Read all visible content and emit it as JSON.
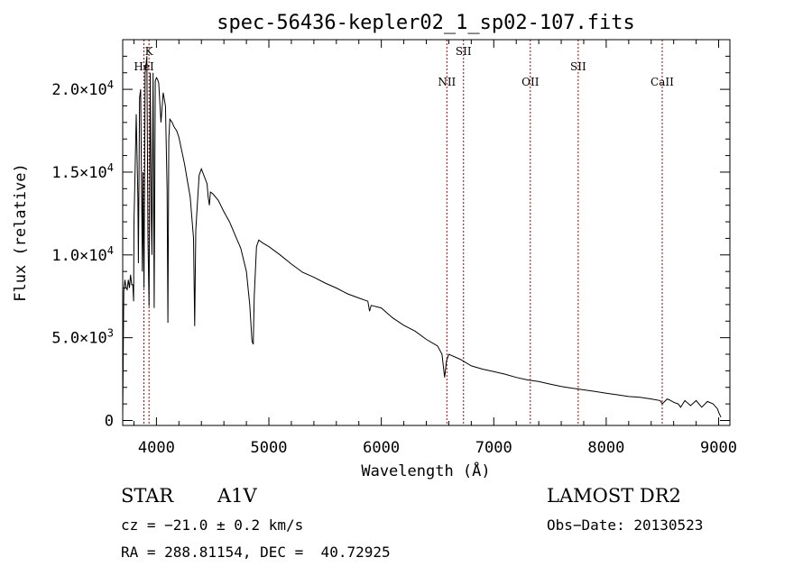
{
  "chart_data": {
    "type": "line",
    "title": "spec-56436-kepler02_1_sp02-107.fits",
    "xlabel": "Wavelength (Å)",
    "ylabel": "Flux (relative)",
    "xlim": [
      3700,
      9100
    ],
    "ylim": [
      -300,
      23000
    ],
    "x_ticks": [
      4000,
      5000,
      6000,
      7000,
      8000,
      9000
    ],
    "x_tick_labels": [
      "4000",
      "5000",
      "6000",
      "7000",
      "8000",
      "9000"
    ],
    "y_ticks": [
      0,
      5000,
      10000,
      15000,
      20000
    ],
    "y_tick_labels": [
      {
        "mantissa": "0",
        "exponent": ""
      },
      {
        "mantissa": "5.0×10",
        "exponent": "3"
      },
      {
        "mantissa": "1.0×10",
        "exponent": "4"
      },
      {
        "mantissa": "1.5×10",
        "exponent": "4"
      },
      {
        "mantissa": "2.0×10",
        "exponent": "4"
      }
    ],
    "grid": false,
    "line_colors": {
      "spectrum": "#000000",
      "markers": "#aa0000"
    },
    "spectral_lines": [
      {
        "name": "HeI",
        "wavelength": 3889
      },
      {
        "name": "K",
        "wavelength": 3934
      },
      {
        "name": "NII",
        "wavelength": 6583
      },
      {
        "name": "SII",
        "wavelength": 6731
      },
      {
        "name": "OII",
        "wavelength": 7325
      },
      {
        "name": "SII",
        "wavelength": 7751
      },
      {
        "name": "CaII",
        "wavelength": 8498
      }
    ],
    "series": [
      {
        "x": [
          3700,
          3710,
          3720,
          3730,
          3740,
          3750,
          3760,
          3770,
          3780,
          3790,
          3797,
          3800,
          3810,
          3820,
          3835,
          3840,
          3850,
          3860,
          3875,
          3880,
          3889,
          3900,
          3915,
          3925,
          3934,
          3945,
          3955,
          3960,
          3970,
          3980,
          3990,
          4000,
          4010,
          4020,
          4040,
          4060,
          4080,
          4095,
          4102,
          4110,
          4120,
          4140,
          4160,
          4180,
          4200,
          4250,
          4300,
          4330,
          4340,
          4350,
          4380,
          4400,
          4450,
          4460,
          4471,
          4480,
          4500,
          4550,
          4600,
          4650,
          4700,
          4750,
          4800,
          4830,
          4850,
          4861,
          4870,
          4890,
          4910,
          4950,
          5000,
          5100,
          5200,
          5300,
          5400,
          5500,
          5600,
          5700,
          5800,
          5880,
          5895,
          5910,
          6000,
          6100,
          6200,
          6300,
          6400,
          6500,
          6540,
          6563,
          6580,
          6600,
          6700,
          6800,
          6900,
          7000,
          7100,
          7200,
          7300,
          7400,
          7500,
          7600,
          7700,
          7800,
          7900,
          8000,
          8100,
          8200,
          8300,
          8400,
          8480,
          8498,
          8520,
          8542,
          8560,
          8600,
          8640,
          8662,
          8680,
          8700,
          8750,
          8800,
          8850,
          8900,
          8950,
          8990,
          9000,
          9020
        ],
        "y": [
          200,
          7800,
          8500,
          8000,
          7900,
          8500,
          8000,
          8800,
          8200,
          8200,
          7200,
          12000,
          15000,
          18500,
          13500,
          9500,
          19500,
          20000,
          9000,
          15000,
          8000,
          21000,
          22000,
          11000,
          6900,
          21000,
          12000,
          10000,
          21000,
          6800,
          20500,
          20700,
          20600,
          20400,
          18000,
          19800,
          19000,
          14000,
          5900,
          17000,
          18200,
          18000,
          17700,
          17500,
          17100,
          15500,
          13500,
          11000,
          5700,
          11500,
          14800,
          15200,
          14300,
          13500,
          13000,
          13800,
          13700,
          13300,
          12600,
          12000,
          11200,
          10400,
          9000,
          7000,
          4800,
          4600,
          7500,
          10500,
          10900,
          10700,
          10500,
          10000,
          9450,
          8950,
          8650,
          8300,
          8000,
          7650,
          7400,
          7200,
          6600,
          6950,
          6800,
          6200,
          5750,
          5400,
          4900,
          4500,
          4000,
          2600,
          3600,
          4000,
          3700,
          3300,
          3100,
          2950,
          2800,
          2600,
          2450,
          2350,
          2200,
          2050,
          1950,
          1850,
          1750,
          1650,
          1550,
          1450,
          1400,
          1300,
          1200,
          1000,
          1150,
          1300,
          1250,
          1100,
          1000,
          800,
          1000,
          1200,
          900,
          1200,
          800,
          1150,
          1000,
          700,
          500,
          200
        ]
      }
    ]
  },
  "info": {
    "object_class": "STAR",
    "subclass": "A1V",
    "survey": "LAMOST DR2",
    "redshift_line": "cz = −21.0 ± 0.2 km/s",
    "obs_date_line": "Obs−Date: 20130523",
    "coords_line": "RA = 288.81154, DEC =  40.72925"
  }
}
